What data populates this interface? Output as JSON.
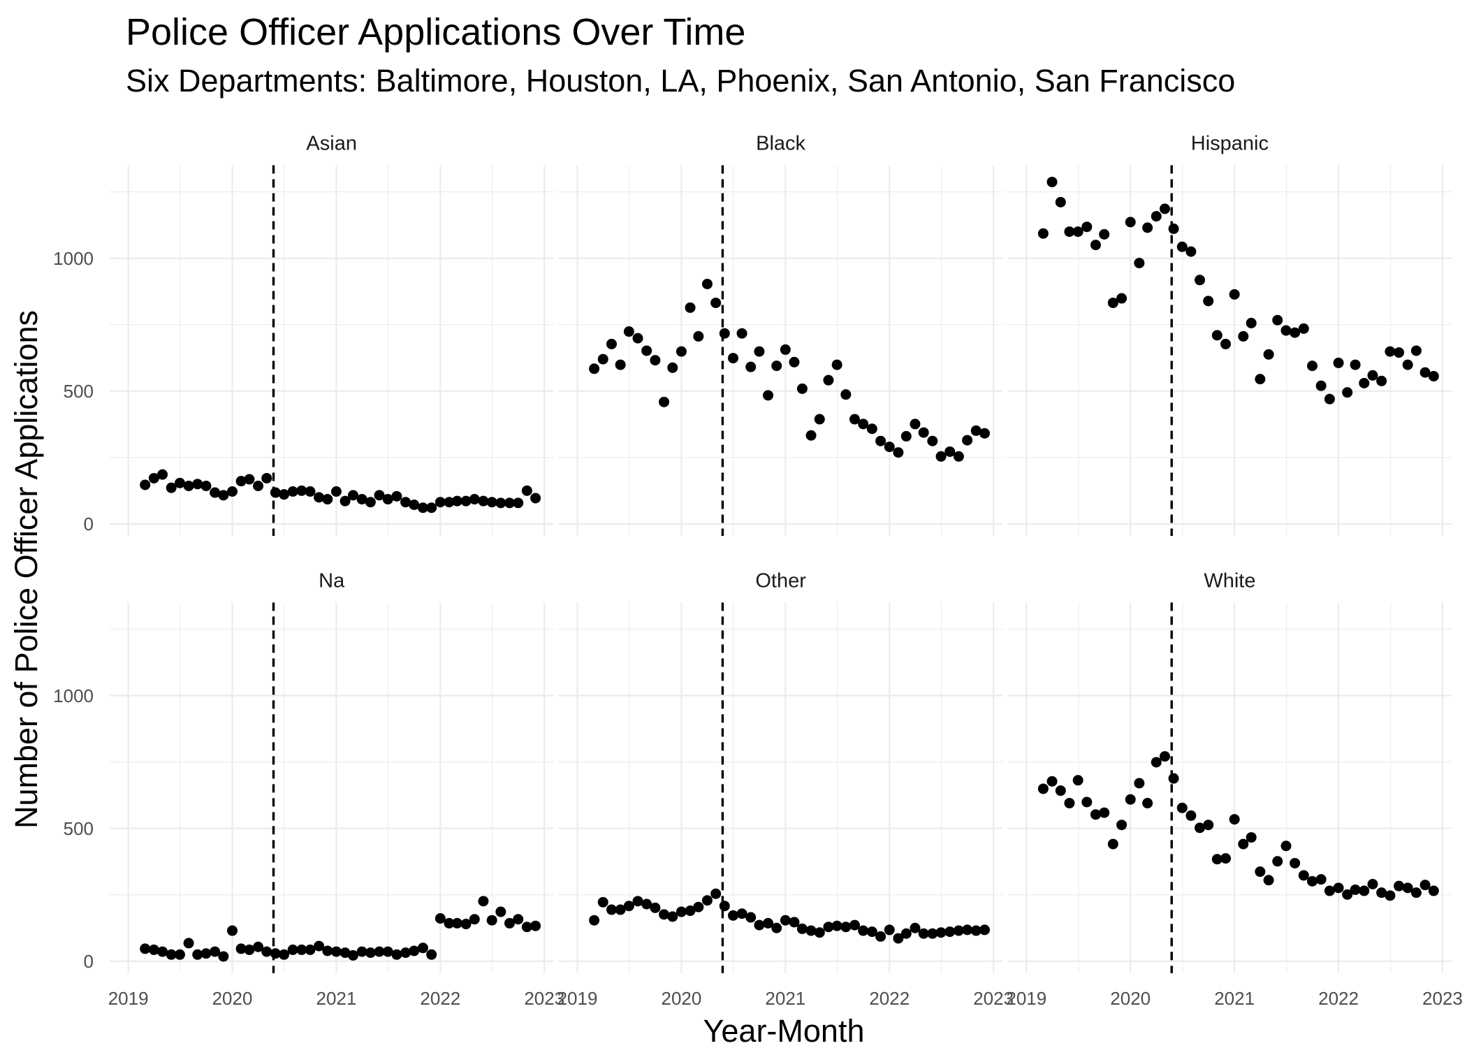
{
  "chart_data": {
    "type": "scatter",
    "title": "Police Officer Applications Over Time",
    "subtitle": "Six Departments: Baltimore, Houston, LA, Phoenix, San Antonio, San Francisco",
    "xlabel": "Year-Month",
    "ylabel": "Number of Police Officer Applications",
    "x_ticks": [
      "2019",
      "2020",
      "2021",
      "2022",
      "2023"
    ],
    "y_ticks": [
      0,
      500,
      1000
    ],
    "xlim": [
      "2018-10-27",
      "2023-02-03"
    ],
    "ylim": [
      -45,
      1350
    ],
    "grid": true,
    "point_color": "#000000",
    "reference_line": {
      "x": "2020-05-25",
      "color": "#000000"
    },
    "x": [
      "2019-03",
      "2019-04",
      "2019-05",
      "2019-06",
      "2019-07",
      "2019-08",
      "2019-09",
      "2019-10",
      "2019-11",
      "2019-12",
      "2020-01",
      "2020-02",
      "2020-03",
      "2020-04",
      "2020-05",
      "2020-06",
      "2020-07",
      "2020-08",
      "2020-09",
      "2020-10",
      "2020-11",
      "2020-12",
      "2021-01",
      "2021-02",
      "2021-03",
      "2021-04",
      "2021-05",
      "2021-06",
      "2021-07",
      "2021-08",
      "2021-09",
      "2021-10",
      "2021-11",
      "2021-12",
      "2022-01",
      "2022-02",
      "2022-03",
      "2022-04",
      "2022-05",
      "2022-06",
      "2022-07",
      "2022-08",
      "2022-09",
      "2022-10",
      "2022-11",
      "2022-12"
    ],
    "facets": [
      {
        "name": "Asian",
        "values": [
          147,
          172,
          186,
          136,
          154,
          143,
          150,
          143,
          118,
          108,
          122,
          161,
          168,
          143,
          172,
          118,
          111,
          122,
          125,
          122,
          100,
          93,
          122,
          86,
          108,
          93,
          82,
          108,
          93,
          104,
          82,
          72,
          61,
          61,
          82,
          82,
          86,
          86,
          93,
          86,
          82,
          79,
          79,
          79,
          125,
          97
        ]
      },
      {
        "name": "Black",
        "values": [
          584,
          620,
          677,
          599,
          724,
          699,
          652,
          616,
          459,
          588,
          649,
          814,
          706,
          903,
          832,
          717,
          624,
          717,
          591,
          649,
          484,
          595,
          656,
          609,
          509,
          333,
          394,
          541,
          599,
          487,
          394,
          376,
          358,
          312,
          290,
          269,
          330,
          376,
          344,
          312,
          254,
          272,
          254,
          315,
          351,
          341
        ]
      },
      {
        "name": "Hispanic",
        "values": [
          1093,
          1287,
          1211,
          1100,
          1100,
          1118,
          1050,
          1090,
          832,
          849,
          1136,
          982,
          1115,
          1158,
          1186,
          1111,
          1043,
          1025,
          918,
          839,
          710,
          677,
          864,
          706,
          756,
          545,
          638,
          767,
          728,
          720,
          735,
          595,
          520,
          470,
          606,
          495,
          599,
          530,
          559,
          538,
          649,
          645,
          599,
          652,
          570,
          556
        ]
      },
      {
        "name": "Na",
        "values": [
          47,
          43,
          36,
          25,
          25,
          68,
          25,
          29,
          36,
          18,
          115,
          47,
          43,
          54,
          36,
          29,
          25,
          43,
          43,
          43,
          57,
          39,
          36,
          32,
          22,
          36,
          32,
          36,
          36,
          25,
          32,
          39,
          50,
          25,
          161,
          143,
          143,
          140,
          158,
          226,
          154,
          186,
          143,
          158,
          129,
          133
        ]
      },
      {
        "name": "Other",
        "values": [
          154,
          222,
          194,
          194,
          208,
          226,
          215,
          201,
          176,
          168,
          186,
          190,
          204,
          229,
          254,
          208,
          172,
          179,
          165,
          136,
          143,
          125,
          154,
          147,
          122,
          115,
          108,
          129,
          133,
          129,
          136,
          115,
          111,
          93,
          118,
          86,
          104,
          125,
          104,
          104,
          108,
          111,
          115,
          118,
          115,
          118
        ]
      },
      {
        "name": "White",
        "values": [
          649,
          677,
          642,
          595,
          681,
          599,
          552,
          559,
          441,
          513,
          609,
          670,
          595,
          749,
          771,
          688,
          577,
          548,
          502,
          513,
          384,
          387,
          534,
          441,
          466,
          337,
          305,
          376,
          434,
          369,
          323,
          301,
          308,
          265,
          276,
          251,
          269,
          265,
          290,
          258,
          247,
          283,
          276,
          258,
          287,
          265
        ]
      }
    ]
  }
}
